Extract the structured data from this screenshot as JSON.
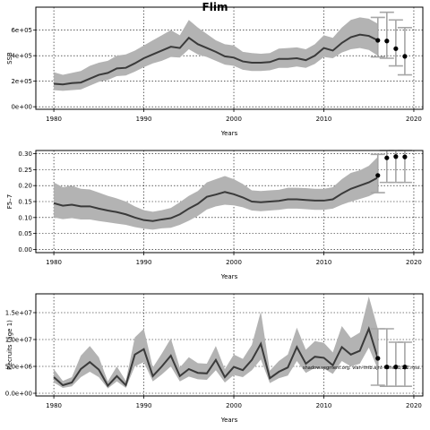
{
  "figure_title": "Flim",
  "chart_data": [
    {
      "type": "line",
      "title": "Flim",
      "xlabel": "Years",
      "ylabel": "SSB",
      "xlim": [
        1978,
        2021
      ],
      "ylim": [
        -20000,
        780000
      ],
      "xticks": [
        1980,
        1990,
        2000,
        2010,
        2020
      ],
      "xtick_labels": [
        "1980",
        "1990",
        "2000",
        "2010",
        "2020"
      ],
      "yticks": [
        0,
        200000,
        400000,
        600000
      ],
      "ytick_labels": [
        "0e+00",
        "2e+05",
        "4e+05",
        "6e+05"
      ],
      "grid": true,
      "grid_style": "dotted",
      "x": [
        1980,
        1981,
        1982,
        1983,
        1984,
        1985,
        1986,
        1987,
        1988,
        1989,
        1990,
        1991,
        1992,
        1993,
        1994,
        1995,
        1996,
        1997,
        1998,
        1999,
        2000,
        2001,
        2002,
        2003,
        2004,
        2005,
        2006,
        2007,
        2008,
        2009,
        2010,
        2011,
        2012,
        2013,
        2014,
        2015,
        2016
      ],
      "series": [
        {
          "values": [
            180000,
            175000,
            185000,
            190000,
            220000,
            250000,
            265000,
            300000,
            305000,
            340000,
            380000,
            410000,
            440000,
            470000,
            460000,
            540000,
            490000,
            460000,
            430000,
            395000,
            385000,
            355000,
            345000,
            345000,
            350000,
            375000,
            375000,
            380000,
            365000,
            400000,
            460000,
            440000,
            500000,
            545000,
            565000,
            555000,
            520000
          ],
          "lower": [
            130000,
            125000,
            130000,
            135000,
            165000,
            195000,
            210000,
            240000,
            245000,
            275000,
            310000,
            340000,
            360000,
            390000,
            385000,
            450000,
            410000,
            390000,
            360000,
            330000,
            320000,
            290000,
            280000,
            280000,
            285000,
            305000,
            305000,
            315000,
            305000,
            335000,
            390000,
            380000,
            425000,
            450000,
            460000,
            445000,
            400000
          ],
          "upper": [
            270000,
            250000,
            265000,
            280000,
            320000,
            345000,
            360000,
            400000,
            410000,
            440000,
            480000,
            520000,
            560000,
            600000,
            560000,
            680000,
            620000,
            570000,
            520000,
            490000,
            480000,
            430000,
            420000,
            415000,
            420000,
            455000,
            460000,
            465000,
            450000,
            490000,
            560000,
            540000,
            620000,
            680000,
            700000,
            690000,
            650000
          ]
        }
      ],
      "projection": {
        "x": [
          2016,
          2017,
          2018,
          2019
        ],
        "values": [
          520000,
          515000,
          455000,
          395000
        ],
        "lower": [
          390000,
          380000,
          320000,
          250000
        ],
        "upper": [
          700000,
          740000,
          680000,
          620000
        ]
      }
    },
    {
      "type": "line",
      "title": "",
      "xlabel": "Years",
      "ylabel": "F5–7",
      "xlim": [
        1978,
        2021
      ],
      "ylim": [
        -0.01,
        0.31
      ],
      "xticks": [
        1980,
        1990,
        2000,
        2010,
        2020
      ],
      "xtick_labels": [
        "1980",
        "1990",
        "2000",
        "2010",
        "2020"
      ],
      "yticks": [
        0.0,
        0.05,
        0.1,
        0.15,
        0.2,
        0.25,
        0.3
      ],
      "ytick_labels": [
        "0.00",
        "0.05",
        "0.10",
        "0.15",
        "0.20",
        "0.25",
        "0.30"
      ],
      "grid": true,
      "grid_style": "dotted",
      "x": [
        1980,
        1981,
        1982,
        1983,
        1984,
        1985,
        1986,
        1987,
        1988,
        1989,
        1990,
        1991,
        1992,
        1993,
        1994,
        1995,
        1996,
        1997,
        1998,
        1999,
        2000,
        2001,
        2002,
        2003,
        2004,
        2005,
        2006,
        2007,
        2008,
        2009,
        2010,
        2011,
        2012,
        2013,
        2014,
        2015,
        2016
      ],
      "series": [
        {
          "values": [
            0.145,
            0.137,
            0.14,
            0.135,
            0.135,
            0.128,
            0.122,
            0.117,
            0.11,
            0.1,
            0.092,
            0.089,
            0.094,
            0.098,
            0.11,
            0.128,
            0.143,
            0.165,
            0.172,
            0.18,
            0.173,
            0.163,
            0.15,
            0.148,
            0.15,
            0.152,
            0.157,
            0.157,
            0.155,
            0.153,
            0.153,
            0.157,
            0.175,
            0.19,
            0.2,
            0.21,
            0.225
          ],
          "lower": [
            0.1,
            0.095,
            0.098,
            0.094,
            0.094,
            0.089,
            0.085,
            0.081,
            0.077,
            0.07,
            0.065,
            0.062,
            0.066,
            0.068,
            0.077,
            0.09,
            0.105,
            0.125,
            0.135,
            0.14,
            0.138,
            0.132,
            0.122,
            0.12,
            0.122,
            0.124,
            0.128,
            0.128,
            0.126,
            0.124,
            0.124,
            0.128,
            0.14,
            0.15,
            0.158,
            0.167,
            0.18
          ],
          "upper": [
            0.21,
            0.195,
            0.2,
            0.19,
            0.188,
            0.178,
            0.168,
            0.16,
            0.15,
            0.135,
            0.123,
            0.118,
            0.123,
            0.13,
            0.148,
            0.168,
            0.183,
            0.21,
            0.22,
            0.23,
            0.22,
            0.205,
            0.185,
            0.183,
            0.185,
            0.187,
            0.193,
            0.193,
            0.192,
            0.19,
            0.19,
            0.195,
            0.22,
            0.24,
            0.248,
            0.262,
            0.29
          ]
        }
      ],
      "projection": {
        "x": [
          2016,
          2017,
          2018,
          2019
        ],
        "values": [
          0.232,
          0.287,
          0.291,
          0.29
        ],
        "lower": [
          0.178,
          0.21,
          0.21,
          0.21
        ],
        "upper": [
          0.298,
          0.31,
          0.31,
          0.31
        ]
      }
    },
    {
      "type": "line",
      "title": "",
      "xlabel": "Years",
      "ylabel": "Recruits (age 1)",
      "xlim": [
        1978,
        2021
      ],
      "ylim": [
        -500000,
        18500000
      ],
      "xticks": [
        1980,
        1990,
        2000,
        2010,
        2020
      ],
      "xtick_labels": [
        "1980",
        "1990",
        "2000",
        "2010",
        "2020"
      ],
      "yticks": [
        0,
        5000000,
        10000000,
        15000000
      ],
      "ytick_labels": [
        "0.0e+00",
        "5.0e+06",
        "1.0e+07",
        "1.5e+07"
      ],
      "grid": true,
      "grid_style": "dotted",
      "x": [
        1980,
        1981,
        1982,
        1983,
        1984,
        1985,
        1986,
        1987,
        1988,
        1989,
        1990,
        1991,
        1992,
        1993,
        1994,
        1995,
        1996,
        1997,
        1998,
        1999,
        2000,
        2001,
        2002,
        2003,
        2004,
        2005,
        2006,
        2007,
        2008,
        2009,
        2010,
        2011,
        2012,
        2013,
        2014,
        2015,
        2016
      ],
      "series": [
        {
          "values": [
            3000000,
            1500000,
            2000000,
            4500000,
            5800000,
            4400000,
            1400000,
            3200000,
            1500000,
            7200000,
            8200000,
            3200000,
            5000000,
            7000000,
            3200000,
            4500000,
            3800000,
            3700000,
            6200000,
            3000000,
            4900000,
            4300000,
            6200000,
            9200000,
            2800000,
            4000000,
            4800000,
            8600000,
            5500000,
            6800000,
            6600000,
            5200000,
            8600000,
            7200000,
            7900000,
            12000000,
            6500000
          ],
          "lower": [
            2000000,
            1000000,
            1300000,
            3000000,
            4000000,
            3000000,
            900000,
            2200000,
            1000000,
            5000000,
            5800000,
            2200000,
            3500000,
            5000000,
            2200000,
            3100000,
            2600000,
            2500000,
            4300000,
            2000000,
            3400000,
            3000000,
            4300000,
            6300000,
            1900000,
            2800000,
            3300000,
            6000000,
            3800000,
            4700000,
            4600000,
            3600000,
            6000000,
            5000000,
            5500000,
            8500000,
            4500000
          ],
          "upper": [
            4500000,
            2300000,
            3000000,
            7000000,
            8800000,
            6700000,
            2200000,
            5000000,
            2300000,
            10400000,
            12000000,
            4800000,
            7400000,
            10200000,
            4800000,
            6700000,
            5600000,
            5500000,
            8800000,
            4500000,
            7200000,
            6400000,
            9000000,
            15200000,
            4200000,
            6000000,
            7200000,
            12200000,
            8100000,
            9700000,
            9400000,
            7600000,
            12500000,
            10300000,
            11300000,
            18000000,
            12000000
          ]
        }
      ],
      "projection": {
        "x": [
          2016,
          2017,
          2018,
          2019
        ],
        "values": [
          6500000,
          4900000,
          4900000,
          4900000
        ],
        "lower": [
          1500000,
          1300000,
          1300000,
          1300000
        ],
        "upper": [
          12000000,
          12000000,
          9500000,
          9500000
        ]
      },
      "annotation": "shadow.segment.org. vian-tmb.ajnt-fisher.1/2/2.ross."
    }
  ]
}
